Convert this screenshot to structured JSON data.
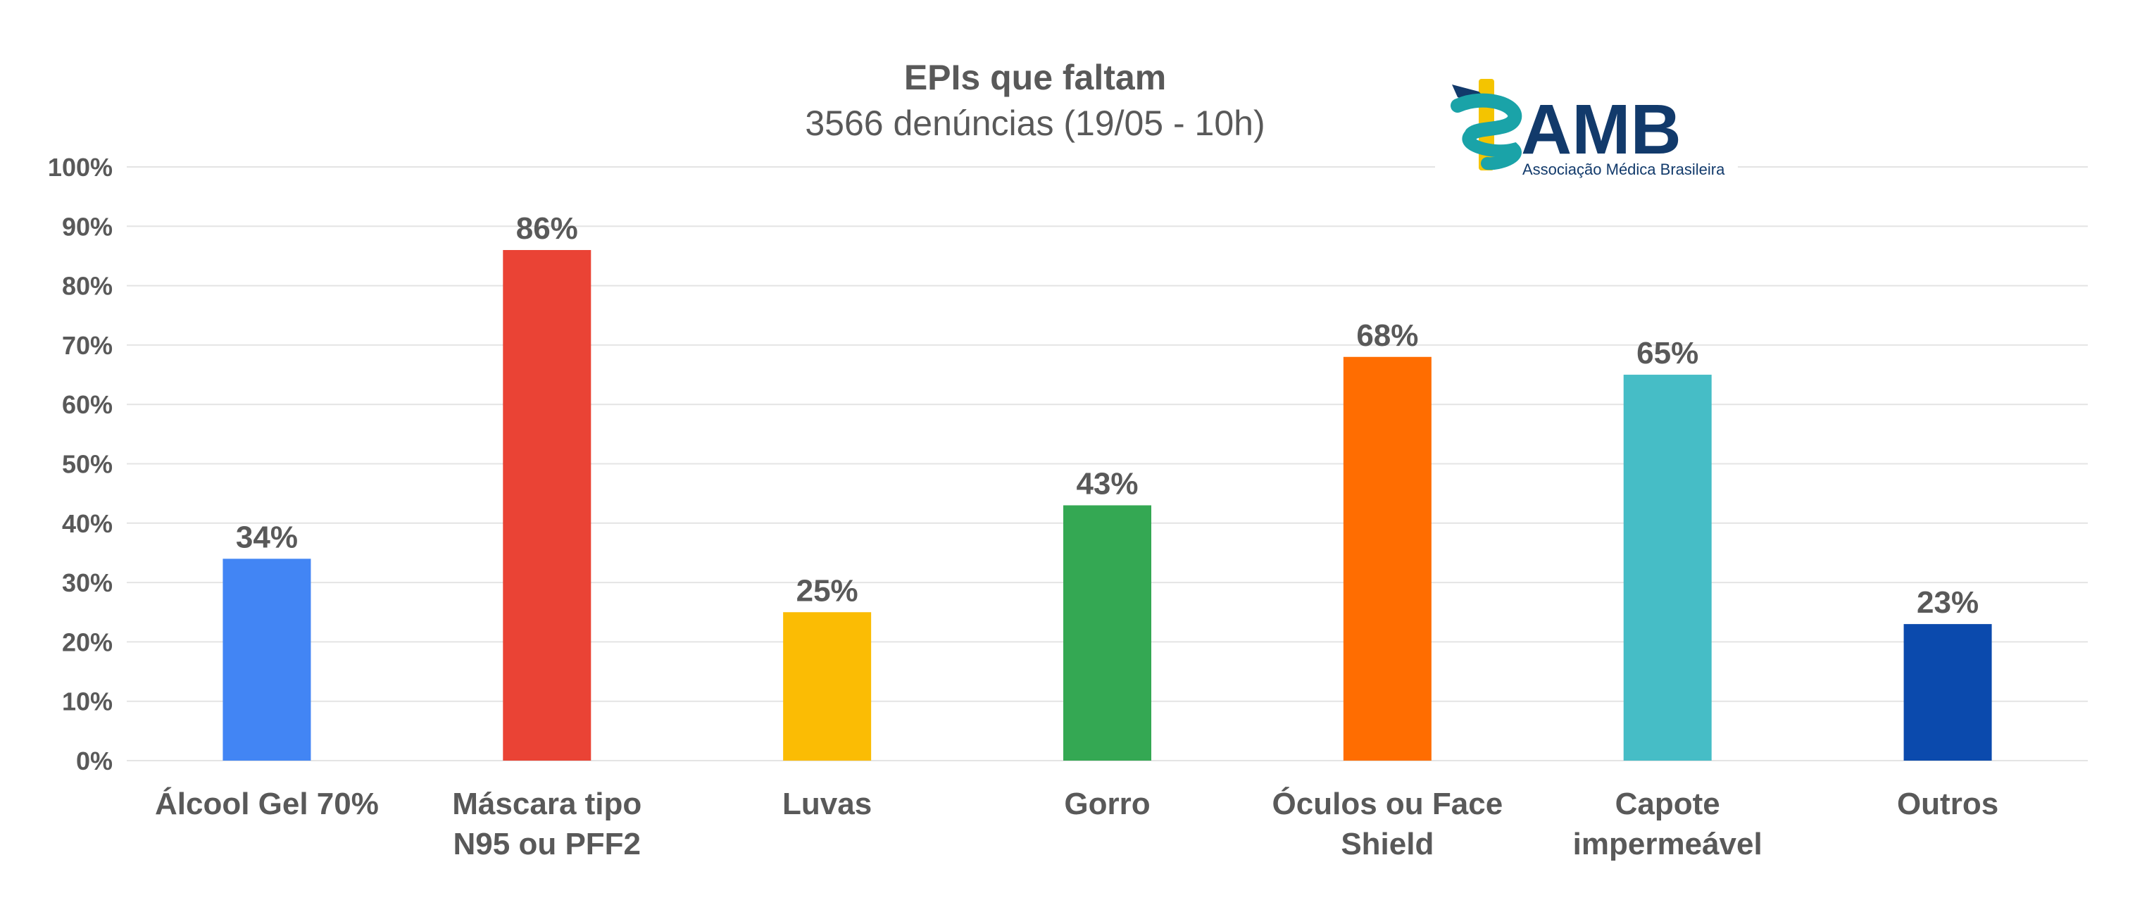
{
  "chart_data": {
    "type": "bar",
    "title": "EPIs que faltam",
    "subtitle": "3566 denúncias (19/05 - 10h)",
    "categories": [
      [
        "Álcool Gel 70%"
      ],
      [
        "Máscara tipo",
        "N95 ou PFF2"
      ],
      [
        "Luvas"
      ],
      [
        "Gorro"
      ],
      [
        "Óculos ou Face",
        "Shield"
      ],
      [
        "Capote",
        "impermeável"
      ],
      [
        "Outros"
      ]
    ],
    "values": [
      34,
      86,
      25,
      43,
      68,
      65,
      23
    ],
    "value_labels": [
      "34%",
      "86%",
      "25%",
      "43%",
      "68%",
      "65%",
      "23%"
    ],
    "colors": [
      "#4285f4",
      "#ea4335",
      "#fbbc04",
      "#34a853",
      "#ff6d01",
      "#46bdc6",
      "#0b4aad"
    ],
    "y_ticks": [
      0,
      10,
      20,
      30,
      40,
      50,
      60,
      70,
      80,
      90,
      100
    ],
    "y_tick_labels": [
      "0%",
      "10%",
      "20%",
      "30%",
      "40%",
      "50%",
      "60%",
      "70%",
      "80%",
      "90%",
      "100%"
    ],
    "ylim": [
      0,
      100
    ],
    "grid": true,
    "xlabel": "",
    "ylabel": ""
  },
  "logo": {
    "name": "AMB",
    "tagline": "Associação Médica Brasileira",
    "text_color": "#123a6b",
    "accent_color": "#1aa3a8",
    "staff_color": "#f4c400"
  }
}
